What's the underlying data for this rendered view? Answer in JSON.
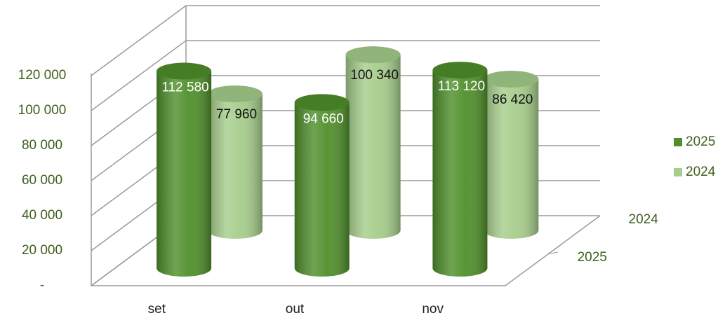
{
  "chart_data": {
    "type": "bar3d_cylinder",
    "categories": [
      "set",
      "out",
      "nov"
    ],
    "series": [
      {
        "name": "2025",
        "color": "#4f8f2b",
        "values": [
          112580,
          94660,
          113120
        ],
        "value_labels": [
          "112 580",
          "94 660",
          "113 120"
        ]
      },
      {
        "name": "2024",
        "color": "#a6cd8b",
        "values": [
          77960,
          100340,
          86420
        ],
        "value_labels": [
          "77 960",
          "100 340",
          "86 420"
        ]
      }
    ],
    "ylim": [
      0,
      120000
    ],
    "yticks": [
      {
        "value": 0,
        "label": "-"
      },
      {
        "value": 20000,
        "label": "20 000"
      },
      {
        "value": 40000,
        "label": "40 000"
      },
      {
        "value": 60000,
        "label": "60 000"
      },
      {
        "value": 80000,
        "label": "80 000"
      },
      {
        "value": 100000,
        "label": "100 000"
      },
      {
        "value": 120000,
        "label": "120 000"
      }
    ],
    "grid": true,
    "legend": "right"
  }
}
